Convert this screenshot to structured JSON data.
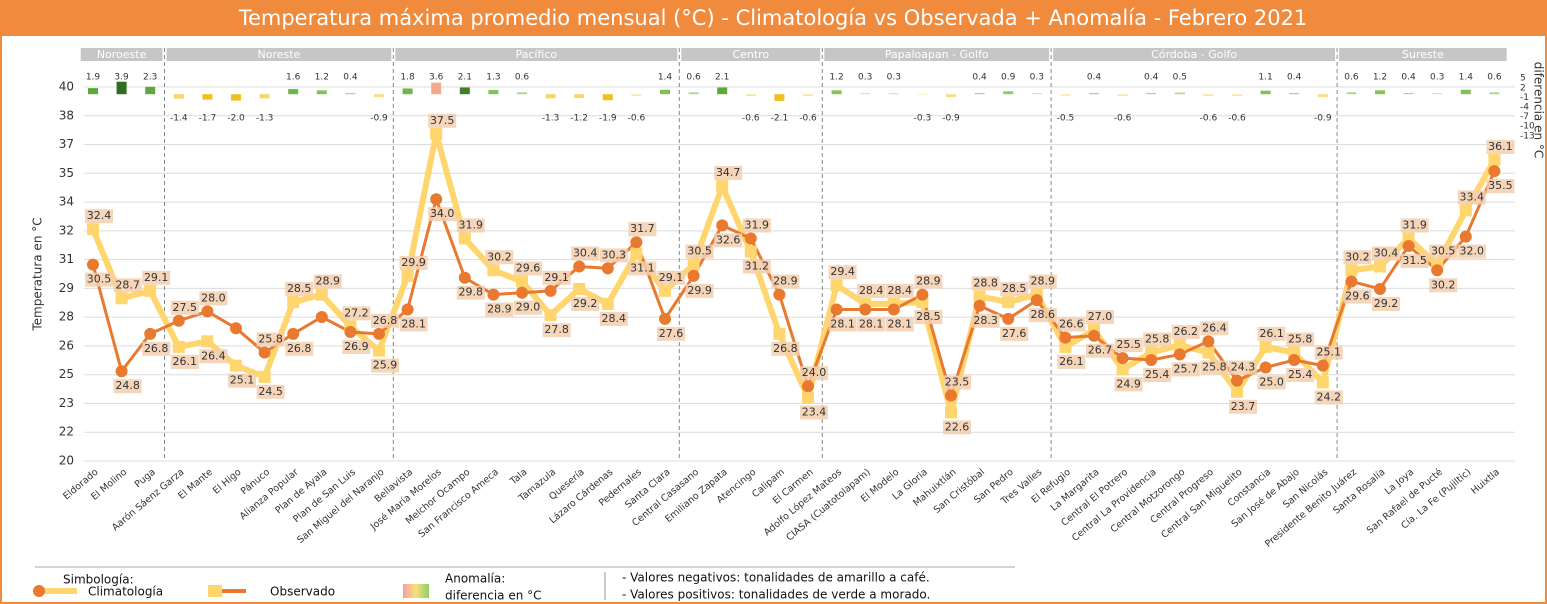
{
  "chart_data": {
    "type": "line",
    "title": "Temperatura máxima promedio mensual (°C) - Climatología vs Observada + Anomalía - Febrero 2021",
    "y_label": "Temperatura en °C",
    "y2_label": "diferencia en °C",
    "categories": [
      "Eldorado",
      "El Molino",
      "Puga",
      "Aarón Sáenz Garza",
      "El Mante",
      "El Higo",
      "Pánuco",
      "Alianza Popular",
      "Plan de Ayala",
      "Plan de San Luis",
      "San Miguel del Naranjo",
      "Bellavista",
      "José María Morelos",
      "Melchor Ocampo",
      "San Francisco Ameca",
      "Tala",
      "Tamazula",
      "Quesería",
      "Lázaro Cárdenas",
      "Pedernales",
      "Santa Clara",
      "Central Casasano",
      "Emiliano Zapata",
      "Atencingo",
      "Calipam",
      "El Carmen",
      "Adolfo López Mateos",
      "CIASA (Cuatotolapam)",
      "El Modelo",
      "La Gloria",
      "Mahuixtlán",
      "San Cristóbal",
      "San Pedro",
      "Tres Valles",
      "El Refugio",
      "La Margarita",
      "Central El Potrero",
      "Central La Providencia",
      "Central Motzorongo",
      "Central Progreso",
      "Central San Miguelito",
      "Constancia",
      "San José de Abajo",
      "San Nicolás",
      "Presidente Benito Juárez",
      "Santa Rosalía",
      "La Joya",
      "San Rafael de Pucté",
      "Cía. La Fe (Pujiltic)",
      "Huixtla"
    ],
    "groups": [
      {
        "name": "Noroeste",
        "count": 3
      },
      {
        "name": "Noreste",
        "count": 8
      },
      {
        "name": "Pacífico",
        "count": 10
      },
      {
        "name": "Centro",
        "count": 5
      },
      {
        "name": "Papaloapan - Golfo",
        "count": 8
      },
      {
        "name": "Córdoba - Golfo",
        "count": 10
      },
      {
        "name": "Sureste",
        "count": 6
      }
    ],
    "ylim": [
      20,
      40
    ],
    "yticks": [
      20,
      {
        "value": 21.538,
        "label": "22"
      },
      {
        "value": 23.077,
        "label": "23"
      },
      {
        "value": 24.615,
        "label": "25"
      },
      {
        "value": 26.154,
        "label": "26"
      },
      {
        "value": 27.692,
        "label": "28"
      },
      {
        "value": 29.231,
        "label": "29"
      },
      {
        "value": 30.769,
        "label": "31"
      },
      {
        "value": 32.308,
        "label": "32"
      },
      {
        "value": 33.846,
        "label": "34"
      },
      {
        "value": 35.385,
        "label": "35"
      },
      {
        "value": 36.923,
        "label": "37"
      },
      {
        "value": 38.462,
        "label": "38"
      },
      40
    ],
    "y2lim": [
      -14,
      6
    ],
    "y2ticks": [
      5,
      2,
      -1,
      -4,
      -7,
      -10,
      -13
    ],
    "grid": true,
    "series": [
      {
        "name": "Climatología",
        "type": "line",
        "marker": "circle",
        "color": "#e8792f",
        "values": [
          30.5,
          24.8,
          26.8,
          27.5,
          28.0,
          27.1,
          25.8,
          26.8,
          27.7,
          26.9,
          26.8,
          28.1,
          34.0,
          29.8,
          28.9,
          29.0,
          29.1,
          30.4,
          30.3,
          31.7,
          27.6,
          29.9,
          32.6,
          31.9,
          28.9,
          24.0,
          28.1,
          28.1,
          28.1,
          28.9,
          23.5,
          28.3,
          27.6,
          28.6,
          26.6,
          26.7,
          25.5,
          25.4,
          25.7,
          26.4,
          24.3,
          25.0,
          25.4,
          25.1,
          29.6,
          29.2,
          31.5,
          30.2,
          32.0,
          35.5
        ],
        "value_labels": [
          "30.5",
          "24.8",
          "26.8",
          "27.5",
          "28.0",
          null,
          "25.8",
          "26.8",
          null,
          "26.9",
          "26.8",
          "28.1",
          "34.0",
          "29.8",
          "28.9",
          "29.0",
          "29.1",
          "30.4",
          "30.3",
          "31.7",
          "27.6",
          "29.9",
          "32.6",
          "31.9",
          "28.9",
          "24.0",
          "28.1",
          "28.1",
          "28.1",
          "28.9",
          "23.5",
          "28.3",
          "27.6",
          "28.6",
          "26.6",
          "26.7",
          "25.5",
          "25.4",
          "25.7",
          "26.4",
          "24.3",
          "25.0",
          "25.4",
          "25.1",
          "29.6",
          "29.2",
          "31.5",
          "30.2",
          "32.0",
          "35.5"
        ]
      },
      {
        "name": "Observado",
        "type": "line",
        "marker": "square",
        "color": "#ffd56e",
        "values": [
          32.4,
          28.7,
          29.1,
          26.1,
          26.4,
          25.1,
          24.5,
          28.5,
          28.9,
          27.2,
          25.9,
          29.9,
          37.5,
          31.9,
          30.2,
          29.6,
          27.8,
          29.2,
          28.4,
          31.1,
          29.1,
          30.5,
          34.7,
          31.2,
          26.8,
          23.4,
          29.4,
          28.4,
          28.4,
          28.5,
          22.6,
          28.8,
          28.5,
          28.9,
          26.1,
          27.0,
          24.9,
          25.8,
          26.2,
          25.8,
          23.7,
          26.1,
          25.8,
          24.2,
          30.2,
          30.4,
          31.9,
          30.5,
          33.4,
          36.1
        ],
        "value_labels": [
          "32.4",
          "28.7",
          "29.1",
          "26.1",
          "26.4",
          "25.1",
          "24.5",
          "28.5",
          "28.9",
          "27.2",
          "25.9",
          "29.9",
          "37.5",
          "31.9",
          "30.2",
          "29.6",
          "27.8",
          "29.2",
          "28.4",
          "31.1",
          "29.1",
          "30.5",
          "34.7",
          "31.2",
          "26.8",
          "23.4",
          "29.4",
          "28.4",
          "28.4",
          "28.5",
          "22.6",
          "28.8",
          "28.5",
          "28.9",
          "26.1",
          "27.0",
          "24.9",
          "25.8",
          "26.2",
          "25.8",
          "23.7",
          "26.1",
          "25.8",
          "24.2",
          "30.2",
          "30.4",
          "31.9",
          "30.5",
          "33.4",
          "36.1"
        ]
      },
      {
        "type": "bar",
        "axis": "y2",
        "values": [
          1.9,
          3.9,
          2.3,
          -1.4,
          -1.7,
          -2.0,
          -1.3,
          1.6,
          1.2,
          0.4,
          -0.9,
          1.8,
          3.6,
          2.1,
          1.3,
          0.6,
          -1.3,
          -1.2,
          -1.9,
          -0.6,
          1.4,
          0.6,
          2.1,
          -0.6,
          -2.1,
          -0.6,
          1.2,
          0.3,
          0.3,
          -0.3,
          -0.9,
          0.4,
          0.9,
          0.3,
          -0.5,
          0.4,
          -0.6,
          0.4,
          0.5,
          -0.6,
          -0.6,
          1.1,
          0.4,
          -0.9,
          0.6,
          1.2,
          0.4,
          0.3,
          1.4,
          0.6
        ],
        "value_labels": [
          "1.9",
          "3.9",
          "2.3",
          "-1.4",
          "-1.7",
          "-2.0",
          "-1.3",
          "1.6",
          "1.2",
          "0.4",
          "-0.9",
          "1.8",
          "3.6",
          "2.1",
          "1.3",
          "0.6",
          "-1.3",
          "-1.2",
          "-1.9",
          "-0.6",
          "1.4",
          "0.6",
          "2.1",
          "-0.6",
          "-2.1",
          "-0.6",
          "1.2",
          "0.3",
          "0.3",
          "-0.3",
          "-0.9",
          "0.4",
          "0.9",
          "0.3",
          "-0.5",
          "0.4",
          "-0.6",
          "0.4",
          "0.5",
          "-0.6",
          "-0.6",
          "1.1",
          "0.4",
          "-0.9",
          "0.6",
          "1.2",
          "0.4",
          "0.3",
          "1.4",
          "0.6"
        ],
        "colors": [
          "#5da83a",
          "#2f6e22",
          "#5da83a",
          "#f7d568",
          "#f0c020",
          "#f0c020",
          "#f7d568",
          "#6fb848",
          "#7fc356",
          "#a9d98a",
          "#f9de80",
          "#6fb848",
          "#f3a98a",
          "#3f7f2a",
          "#7fc356",
          "#a9d98a",
          "#f7d568",
          "#f7d568",
          "#f0c020",
          "#fbe7a0",
          "#7fc356",
          "#a9d98a",
          "#5da83a",
          "#fbe7a0",
          "#f0c020",
          "#fbe7a0",
          "#7fc356",
          "#c0e3a8",
          "#c0e3a8",
          "#fcefc4",
          "#f9de80",
          "#a9d98a",
          "#8ccb66",
          "#c0e3a8",
          "#fbe7a0",
          "#a9d98a",
          "#fbe7a0",
          "#a9d98a",
          "#a9d98a",
          "#fbe7a0",
          "#fbe7a0",
          "#7fc356",
          "#a9d98a",
          "#f9de80",
          "#a9d98a",
          "#7fc356",
          "#a9d98a",
          "#c0e3a8",
          "#7fc356",
          "#a9d98a"
        ]
      }
    ],
    "legend": {
      "title": "Simbología:",
      "anomaly": [
        "Anomalía:",
        "diferencia en °C"
      ],
      "notes": [
        "- Valores negativos: tonalidades de amarillo a café.",
        "- Valores positivos: tonalidades de verde a morado."
      ]
    }
  }
}
